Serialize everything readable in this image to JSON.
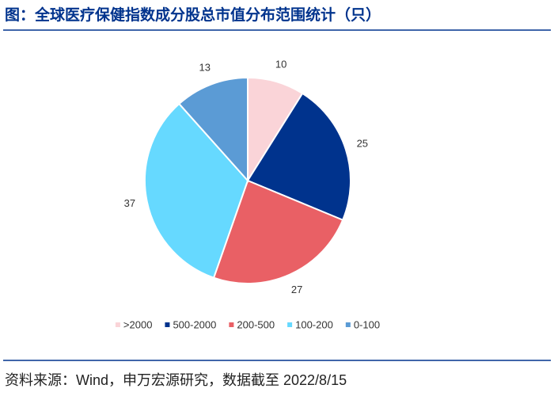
{
  "chart_data": {
    "type": "pie",
    "title": "图：全球医疗保健指数成分股总市值分布范围统计（只）",
    "categories": [
      ">2000",
      "500-2000",
      "200-500",
      "100-200",
      "0-100"
    ],
    "values": [
      10,
      25,
      27,
      37,
      13
    ],
    "colors": [
      "#fad4d8",
      "#00338d",
      "#e96065",
      "#66d9ff",
      "#5b9bd5"
    ],
    "legend": "bottom",
    "source": "资料来源：Wind，申万宏源研究，数据截至 2022/8/15"
  }
}
